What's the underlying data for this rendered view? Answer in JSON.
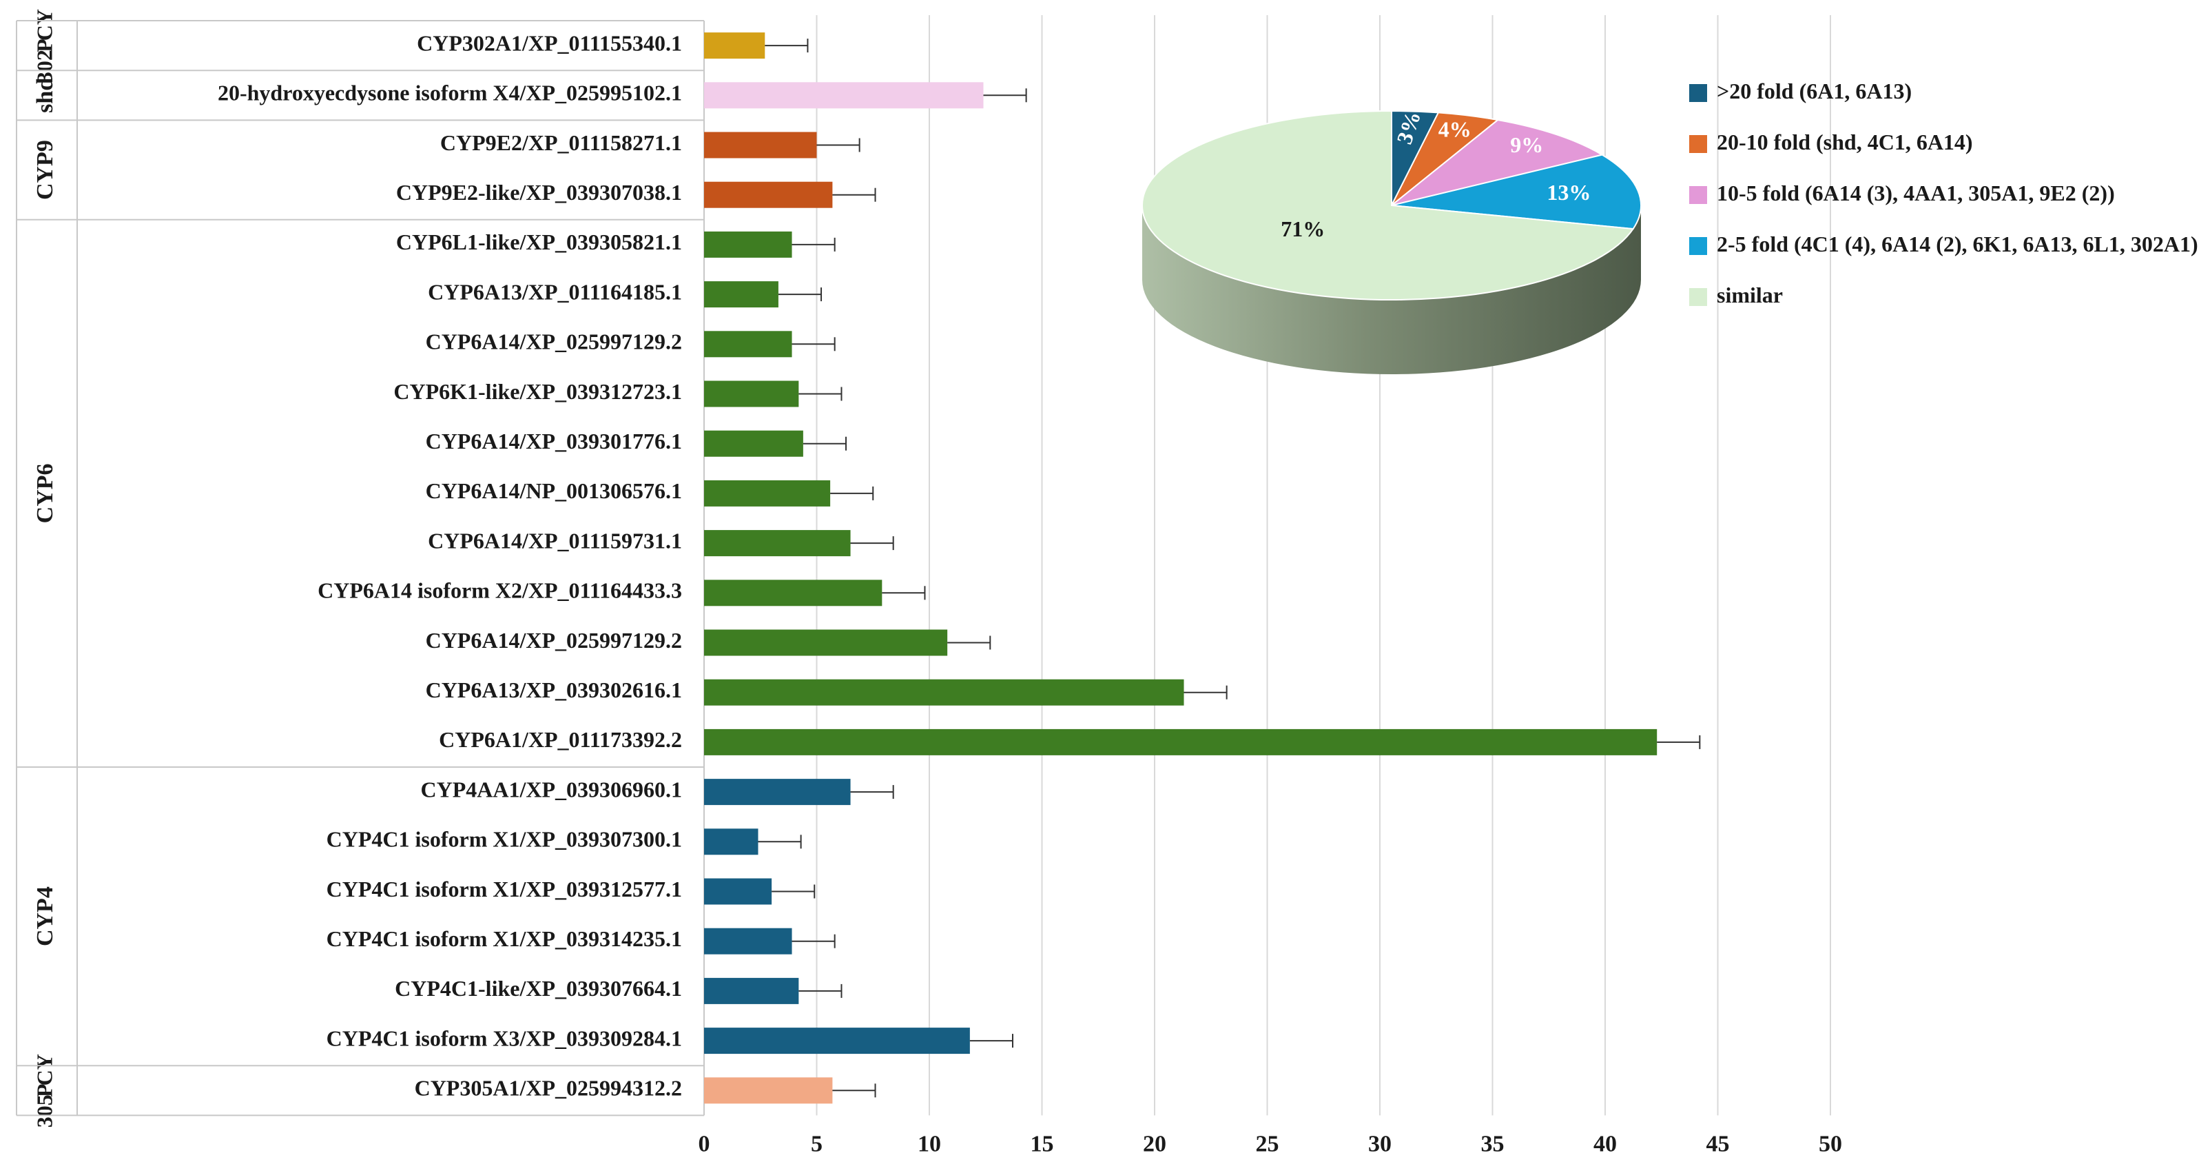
{
  "chart_data": [
    {
      "type": "bar",
      "orientation": "horizontal",
      "xlim": [
        0,
        50
      ],
      "xticks": [
        0,
        5,
        10,
        15,
        20,
        25,
        30,
        35,
        40,
        45,
        50
      ],
      "grid": "vertical",
      "groups": [
        {
          "label": "CY P 302",
          "color": "#d4a017",
          "rows": [
            {
              "label": "CYP302A1/XP_011155340.1",
              "value": 2.7,
              "error": 1.9
            }
          ]
        },
        {
          "label": "shd",
          "color": "#f2cdea",
          "rows": [
            {
              "label": "20-hydroxyecdysone isoform X4/XP_025995102.1",
              "value": 12.4,
              "error": 1.9
            }
          ]
        },
        {
          "label": "CYP9",
          "color": "#c4531a",
          "rows": [
            {
              "label": "CYP9E2/XP_011158271.1",
              "value": 5.0,
              "error": 1.9
            },
            {
              "label": "CYP9E2-like/XP_039307038.1",
              "value": 5.7,
              "error": 1.9
            }
          ]
        },
        {
          "label": "CYP6",
          "color": "#3e7d22",
          "rows": [
            {
              "label": "CYP6L1-like/XP_039305821.1",
              "value": 3.9,
              "error": 1.9
            },
            {
              "label": "CYP6A13/XP_011164185.1",
              "value": 3.3,
              "error": 1.9
            },
            {
              "label": "CYP6A14/XP_025997129.2",
              "value": 3.9,
              "error": 1.9
            },
            {
              "label": "CYP6K1-like/XP_039312723.1",
              "value": 4.2,
              "error": 1.9
            },
            {
              "label": "CYP6A14/XP_039301776.1",
              "value": 4.4,
              "error": 1.9
            },
            {
              "label": "CYP6A14/NP_001306576.1",
              "value": 5.6,
              "error": 1.9
            },
            {
              "label": "CYP6A14/XP_011159731.1",
              "value": 6.5,
              "error": 1.9
            },
            {
              "label": "CYP6A14 isoform X2/XP_011164433.3",
              "value": 7.9,
              "error": 1.9
            },
            {
              "label": "CYP6A14/XP_025997129.2",
              "value": 10.8,
              "error": 1.9
            },
            {
              "label": "CYP6A13/XP_039302616.1",
              "value": 21.3,
              "error": 1.9
            },
            {
              "label": "CYP6A1/XP_011173392.2",
              "value": 42.3,
              "error": 1.9
            }
          ]
        },
        {
          "label": "CYP4",
          "color": "#175e82",
          "rows": [
            {
              "label": "CYP4AA1/XP_039306960.1",
              "value": 6.5,
              "error": 1.9
            },
            {
              "label": "CYP4C1 isoform X1/XP_039307300.1",
              "value": 2.4,
              "error": 1.9
            },
            {
              "label": "CYP4C1 isoform X1/XP_039312577.1",
              "value": 3.0,
              "error": 1.9
            },
            {
              "label": "CYP4C1 isoform X1/XP_039314235.1",
              "value": 3.9,
              "error": 1.9
            },
            {
              "label": "CYP4C1-like/XP_039307664.1",
              "value": 4.2,
              "error": 1.9
            },
            {
              "label": "CYP4C1 isoform X3/XP_039309284.1",
              "value": 11.8,
              "error": 1.9
            }
          ]
        },
        {
          "label": "CY P 305",
          "color": "#f2a985",
          "rows": [
            {
              "label": "CYP305A1/XP_025994312.2",
              "value": 5.7,
              "error": 1.9
            }
          ]
        }
      ]
    },
    {
      "type": "pie",
      "style": "3d",
      "slices": [
        {
          "label": ">20 fold",
          "detail": "(6A1, 6A13)",
          "value": 3,
          "text": "3%",
          "color": "#175e82"
        },
        {
          "label": "20-10 fold",
          "detail": "(shd, 4C1, 6A14)",
          "value": 4,
          "text": "4%",
          "color": "#e06c2b"
        },
        {
          "label": "10-5 fold",
          "detail": "(6A14 (3), 4AA1,  305A1, 9E2 (2))",
          "value": 9,
          "text": "9%",
          "color": "#e399d8"
        },
        {
          "label": "2-5 fold",
          "detail": "(4C1 (4), 6A14 (2), 6K1, 6A13, 6L1, 302A1)",
          "value": 13,
          "text": "13%",
          "color": "#14a0d6"
        },
        {
          "label": "similar",
          "detail": "",
          "value": 71,
          "text": "71%",
          "color": "#d7eed0"
        }
      ],
      "legend": "right"
    }
  ]
}
